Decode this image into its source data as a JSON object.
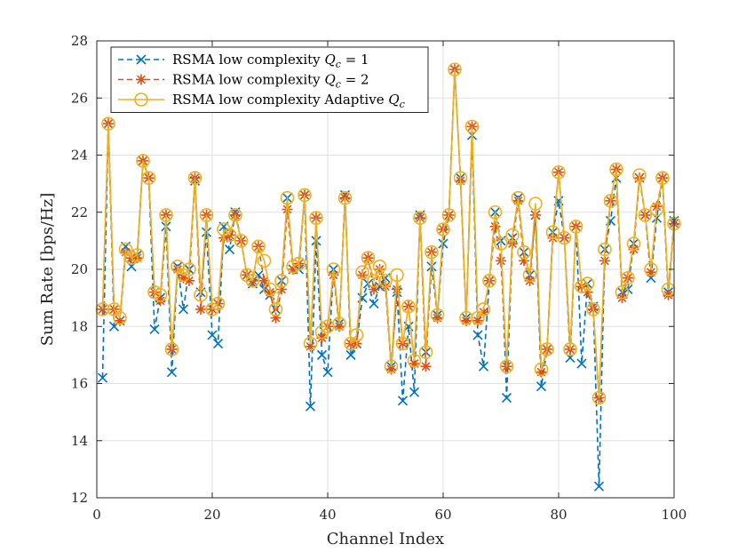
{
  "chart_data": {
    "type": "line",
    "title": "",
    "xlabel": "Channel Index",
    "ylabel": "Sum Rate [bps/Hz]",
    "xlim": [
      0,
      100
    ],
    "ylim": [
      12,
      28
    ],
    "xticks": [
      "0",
      "20",
      "40",
      "60",
      "80",
      "100"
    ],
    "yticks": [
      "12",
      "14",
      "16",
      "18",
      "20",
      "22",
      "24",
      "26",
      "28"
    ],
    "grid": true,
    "legend_position": "top-left",
    "x": [
      1,
      2,
      3,
      4,
      5,
      6,
      7,
      8,
      9,
      10,
      11,
      12,
      13,
      14,
      15,
      16,
      17,
      18,
      19,
      20,
      21,
      22,
      23,
      24,
      25,
      26,
      27,
      28,
      29,
      30,
      31,
      32,
      33,
      34,
      35,
      36,
      37,
      38,
      39,
      40,
      41,
      42,
      43,
      44,
      45,
      46,
      47,
      48,
      49,
      50,
      51,
      52,
      53,
      54,
      55,
      56,
      57,
      58,
      59,
      60,
      61,
      62,
      63,
      64,
      65,
      66,
      67,
      68,
      69,
      70,
      71,
      72,
      73,
      74,
      75,
      76,
      77,
      78,
      79,
      80,
      81,
      82,
      83,
      84,
      85,
      86,
      87,
      88,
      89,
      90,
      91,
      92,
      93,
      94,
      95,
      96,
      97,
      98,
      99,
      100
    ],
    "series": [
      {
        "name": "RSMA low complexity Qc = 1",
        "legend_main": "RSMA low complexity ",
        "legend_var": "Q",
        "legend_sub": "c",
        "legend_tail": " = 1",
        "color": "#0072BD",
        "marker": "x",
        "linestyle": "dashed",
        "values": [
          16.2,
          25.1,
          18.0,
          18.2,
          20.8,
          20.1,
          20.5,
          23.8,
          23.2,
          17.9,
          19.0,
          21.5,
          16.4,
          20.1,
          18.6,
          20.0,
          23.1,
          19.2,
          21.3,
          17.7,
          17.4,
          21.5,
          20.7,
          22.0,
          21.0,
          19.8,
          19.5,
          19.8,
          19.3,
          19.1,
          18.6,
          19.6,
          22.5,
          20.0,
          20.0,
          22.6,
          15.2,
          21.0,
          17.0,
          16.4,
          20.0,
          18.1,
          22.6,
          17.0,
          17.4,
          19.0,
          19.5,
          18.8,
          19.4,
          19.7,
          16.6,
          19.2,
          15.4,
          18.0,
          15.7,
          21.9,
          17.1,
          20.1,
          18.4,
          20.9,
          21.9,
          27.0,
          23.2,
          18.3,
          24.7,
          17.7,
          16.6,
          19.6,
          22.0,
          21.0,
          15.5,
          21.1,
          22.5,
          20.6,
          19.8,
          21.9,
          15.9,
          17.2,
          21.3,
          22.4,
          21.1,
          16.9,
          21.5,
          16.7,
          19.5,
          18.7,
          12.4,
          20.7,
          21.7,
          23.2,
          19.2,
          19.3,
          20.9,
          23.2,
          21.9,
          19.7,
          21.8,
          23.2,
          19.2,
          21.7
        ]
      },
      {
        "name": "RSMA low complexity Qc = 2",
        "legend_main": "RSMA low complexity ",
        "legend_var": "Q",
        "legend_sub": "c",
        "legend_tail": " = 2",
        "color": "#D95319",
        "marker": "asterisk",
        "linestyle": "dashed",
        "values": [
          18.6,
          25.1,
          18.6,
          18.2,
          20.6,
          20.4,
          20.4,
          23.8,
          23.2,
          19.2,
          18.9,
          21.9,
          17.2,
          20.0,
          19.7,
          19.6,
          23.2,
          18.6,
          21.9,
          18.6,
          18.8,
          21.1,
          21.2,
          21.9,
          21.0,
          19.8,
          19.6,
          20.8,
          19.6,
          19.2,
          18.3,
          19.3,
          22.1,
          20.0,
          20.2,
          22.6,
          17.3,
          21.8,
          17.6,
          18.0,
          19.8,
          18.0,
          22.5,
          17.4,
          17.4,
          19.8,
          20.4,
          19.3,
          20.0,
          19.4,
          16.5,
          19.3,
          17.4,
          18.7,
          16.7,
          21.8,
          16.6,
          20.6,
          18.3,
          21.4,
          21.9,
          27.0,
          23.1,
          18.2,
          25.0,
          18.2,
          18.5,
          19.6,
          21.5,
          20.3,
          16.6,
          20.9,
          22.4,
          20.3,
          19.6,
          21.9,
          16.4,
          17.2,
          21.1,
          23.4,
          21.1,
          17.2,
          21.5,
          19.4,
          19.2,
          18.6,
          15.5,
          20.3,
          22.4,
          23.5,
          19.0,
          19.7,
          20.7,
          23.2,
          21.9,
          19.9,
          22.2,
          23.2,
          19.1,
          21.6
        ]
      },
      {
        "name": "RSMA low complexity Adaptive Qc",
        "legend_main": "RSMA low complexity Adaptive ",
        "legend_var": "Q",
        "legend_sub": "c",
        "legend_tail": "",
        "color": "#EDB120",
        "marker": "circle",
        "linestyle": "solid",
        "values": [
          18.6,
          25.1,
          18.6,
          18.3,
          20.7,
          20.4,
          20.5,
          23.8,
          23.2,
          19.2,
          19.1,
          21.9,
          17.2,
          20.1,
          19.8,
          20.0,
          23.2,
          19.1,
          21.9,
          18.6,
          18.8,
          21.4,
          21.2,
          21.9,
          21.0,
          19.8,
          19.6,
          20.8,
          20.3,
          19.3,
          18.6,
          19.6,
          22.5,
          20.1,
          20.2,
          22.6,
          17.4,
          21.8,
          17.8,
          18.0,
          20.0,
          18.1,
          22.5,
          17.4,
          17.7,
          19.9,
          20.4,
          19.6,
          20.1,
          19.6,
          16.6,
          19.8,
          17.4,
          18.7,
          16.8,
          21.8,
          17.1,
          20.6,
          18.4,
          21.4,
          21.9,
          27.0,
          23.2,
          18.3,
          25.0,
          18.3,
          18.6,
          19.6,
          22.0,
          20.9,
          16.6,
          21.2,
          22.5,
          20.6,
          19.8,
          22.3,
          16.5,
          17.2,
          21.3,
          23.4,
          21.1,
          17.2,
          21.5,
          19.4,
          19.5,
          18.6,
          15.5,
          20.7,
          22.4,
          23.5,
          19.2,
          19.7,
          20.9,
          23.3,
          21.9,
          20.0,
          22.1,
          23.2,
          19.3,
          21.6
        ]
      }
    ]
  }
}
